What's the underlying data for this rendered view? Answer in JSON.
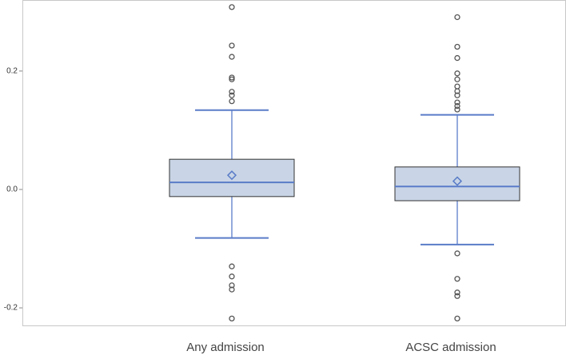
{
  "chart_data": {
    "type": "box",
    "categories": [
      "Any admission",
      "ACSC admission"
    ],
    "boxes": [
      {
        "q1": -0.012,
        "median": 0.012,
        "q3": 0.051,
        "mean": 0.024,
        "whisker_low": -0.082,
        "whisker_high": 0.134,
        "outliers": [
          0.308,
          0.243,
          0.224,
          0.189,
          0.186,
          0.165,
          0.159,
          0.149,
          -0.13,
          -0.147,
          -0.162,
          -0.169,
          -0.218
        ]
      },
      {
        "q1": -0.019,
        "median": 0.005,
        "q3": 0.038,
        "mean": 0.014,
        "whisker_low": -0.093,
        "whisker_high": 0.126,
        "outliers": [
          0.291,
          0.241,
          0.222,
          0.196,
          0.186,
          0.174,
          0.166,
          0.159,
          0.147,
          0.141,
          0.135,
          -0.108,
          -0.151,
          -0.174,
          -0.18,
          -0.218
        ]
      }
    ],
    "box_color": "#c9d5e6",
    "line_color": "#5a7cc8",
    "outlier_color": "#555555",
    "ylim": [
      -0.231,
      0.32
    ],
    "yticks": [
      -0.2,
      {
        "value": 0,
        "label": "0.0"
      },
      0.2
    ],
    "grid": false
  }
}
